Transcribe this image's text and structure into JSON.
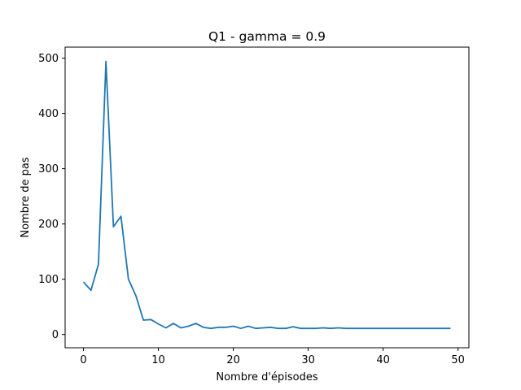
{
  "chart_data": {
    "type": "line",
    "title": "Q1 - gamma = 0.9",
    "xlabel": "Nombre d'épisodes",
    "ylabel": "Nombre de pas",
    "xlim": [
      -2.45,
      51.45
    ],
    "ylim": [
      -24,
      520
    ],
    "xticks": [
      0,
      10,
      20,
      30,
      40,
      50
    ],
    "yticks": [
      0,
      100,
      200,
      300,
      400,
      500
    ],
    "grid": false,
    "colors": {
      "line": "#1f77b4",
      "axes": "#000000",
      "background": "#ffffff"
    },
    "series": [
      {
        "x": [
          0,
          1,
          2,
          3,
          4,
          5,
          6,
          7,
          8,
          9,
          10,
          11,
          12,
          13,
          14,
          15,
          16,
          17,
          18,
          19,
          20,
          21,
          22,
          23,
          24,
          25,
          26,
          27,
          28,
          29,
          30,
          31,
          32,
          33,
          34,
          35,
          36,
          37,
          38,
          39,
          40,
          41,
          42,
          43,
          44,
          45,
          46,
          47,
          48,
          49
        ],
        "values": [
          95,
          80,
          127,
          494,
          195,
          214,
          100,
          70,
          26,
          27,
          19,
          12,
          20,
          12,
          15,
          20,
          13,
          11,
          13,
          13,
          15,
          11,
          15,
          11,
          12,
          13,
          11,
          11,
          14,
          11,
          11,
          11,
          12,
          11,
          12,
          11,
          11,
          11,
          11,
          11,
          11,
          11,
          11,
          11,
          11,
          11,
          11,
          11,
          11,
          11
        ]
      }
    ]
  }
}
